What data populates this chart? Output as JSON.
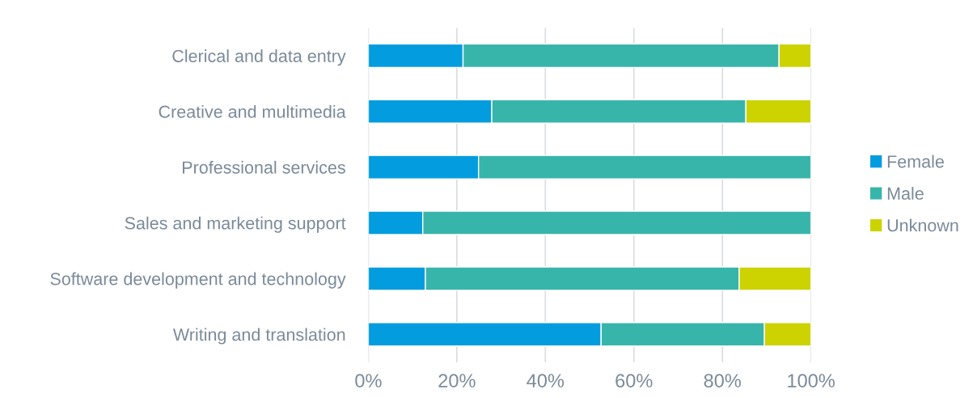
{
  "chart_data": {
    "type": "bar",
    "orientation": "horizontal",
    "stacked": true,
    "categories": [
      "Clerical and data entry",
      "Creative and multimedia",
      "Professional services",
      "Sales and marketing support",
      "Software development and technology",
      "Writing and translation"
    ],
    "series": [
      {
        "name": "Female",
        "color": "#039ddf",
        "values": [
          21.4,
          27.9,
          24.9,
          12.3,
          12.9,
          52.6
        ]
      },
      {
        "name": "Male",
        "color": "#38b5aa",
        "values": [
          71.4,
          57.4,
          75.1,
          87.7,
          70.9,
          36.9
        ]
      },
      {
        "name": "Unknown",
        "color": "#ccd300",
        "values": [
          7.2,
          14.7,
          null,
          null,
          16.2,
          10.5
        ]
      }
    ],
    "xlim": [
      0,
      100
    ],
    "xticks": [
      {
        "value": 0,
        "label": "0%"
      },
      {
        "value": 20,
        "label": "20%"
      },
      {
        "value": 40,
        "label": "40%"
      },
      {
        "value": 60,
        "label": "60%"
      },
      {
        "value": 80,
        "label": "80%"
      },
      {
        "value": 100,
        "label": "100%"
      }
    ],
    "grid": "x",
    "legend": "right"
  }
}
